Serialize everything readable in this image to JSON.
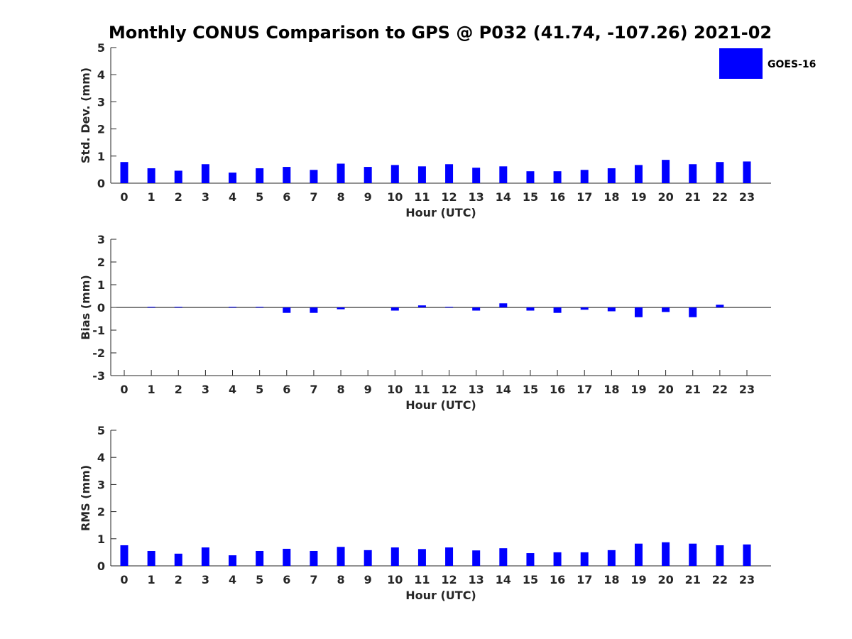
{
  "title": "Monthly CONUS Comparison to GPS @ P032 (41.74, -107.26) 2021-02",
  "legend": {
    "label": "GOES-16",
    "color": "#0000ff",
    "placement": "top-right"
  },
  "chart_data": [
    {
      "type": "bar",
      "xlabel": "Hour (UTC)",
      "ylabel": "Std. Dev. (mm)",
      "ylim": [
        0,
        5
      ],
      "yticks": [
        0,
        1,
        2,
        3,
        4,
        5
      ],
      "categories": [
        "0",
        "1",
        "2",
        "3",
        "4",
        "5",
        "6",
        "7",
        "8",
        "9",
        "10",
        "11",
        "12",
        "13",
        "14",
        "15",
        "16",
        "17",
        "18",
        "19",
        "20",
        "21",
        "22",
        "23"
      ],
      "series": [
        {
          "name": "GOES-16",
          "color": "#0000ff",
          "values": [
            0.78,
            0.55,
            0.46,
            0.7,
            0.39,
            0.55,
            0.6,
            0.49,
            0.72,
            0.6,
            0.67,
            0.62,
            0.7,
            0.57,
            0.62,
            0.44,
            0.44,
            0.49,
            0.55,
            0.67,
            0.86,
            0.7,
            0.78,
            0.8
          ]
        }
      ]
    },
    {
      "type": "bar",
      "xlabel": "Hour (UTC)",
      "ylabel": "Bias (mm)",
      "ylim": [
        -3,
        3
      ],
      "yticks": [
        -3,
        -2,
        -1,
        0,
        1,
        2,
        3
      ],
      "categories": [
        "0",
        "1",
        "2",
        "3",
        "4",
        "5",
        "6",
        "7",
        "8",
        "9",
        "10",
        "11",
        "12",
        "13",
        "14",
        "15",
        "16",
        "17",
        "18",
        "19",
        "20",
        "21",
        "22",
        "23"
      ],
      "series": [
        {
          "name": "GOES-16",
          "color": "#0000ff",
          "values": [
            0.0,
            0.03,
            0.03,
            0.0,
            0.03,
            0.03,
            -0.24,
            -0.24,
            -0.08,
            0.0,
            -0.14,
            0.09,
            0.03,
            -0.14,
            0.18,
            -0.14,
            -0.24,
            -0.1,
            -0.17,
            -0.43,
            -0.2,
            -0.43,
            0.12,
            0.0
          ]
        }
      ]
    },
    {
      "type": "bar",
      "xlabel": "Hour (UTC)",
      "ylabel": "RMS (mm)",
      "ylim": [
        0,
        5
      ],
      "yticks": [
        0,
        1,
        2,
        3,
        4,
        5
      ],
      "categories": [
        "0",
        "1",
        "2",
        "3",
        "4",
        "5",
        "6",
        "7",
        "8",
        "9",
        "10",
        "11",
        "12",
        "13",
        "14",
        "15",
        "16",
        "17",
        "18",
        "19",
        "20",
        "21",
        "22",
        "23"
      ],
      "series": [
        {
          "name": "GOES-16",
          "color": "#0000ff",
          "values": [
            0.76,
            0.55,
            0.45,
            0.68,
            0.39,
            0.55,
            0.63,
            0.55,
            0.7,
            0.58,
            0.68,
            0.62,
            0.68,
            0.57,
            0.65,
            0.47,
            0.5,
            0.5,
            0.58,
            0.82,
            0.87,
            0.82,
            0.76,
            0.79
          ]
        }
      ]
    }
  ]
}
